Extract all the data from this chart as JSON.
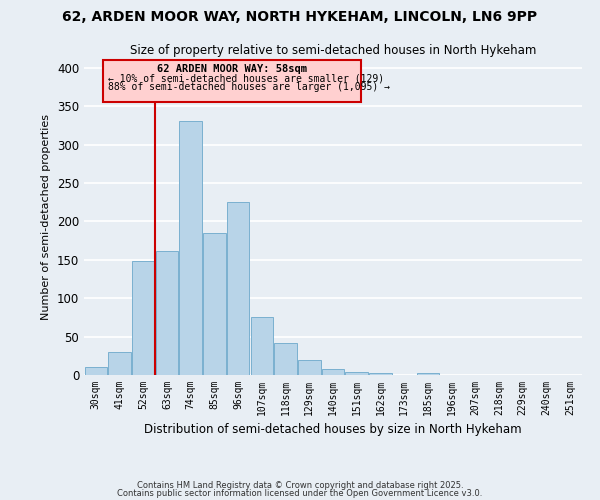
{
  "title1": "62, ARDEN MOOR WAY, NORTH HYKEHAM, LINCOLN, LN6 9PP",
  "title2": "Size of property relative to semi-detached houses in North Hykeham",
  "xlabel": "Distribution of semi-detached houses by size in North Hykeham",
  "ylabel": "Number of semi-detached properties",
  "categories": [
    "30sqm",
    "41sqm",
    "52sqm",
    "63sqm",
    "74sqm",
    "85sqm",
    "96sqm",
    "107sqm",
    "118sqm",
    "129sqm",
    "140sqm",
    "151sqm",
    "162sqm",
    "173sqm",
    "185sqm",
    "196sqm",
    "207sqm",
    "218sqm",
    "229sqm",
    "240sqm",
    "251sqm"
  ],
  "values": [
    10,
    30,
    148,
    162,
    330,
    185,
    225,
    75,
    42,
    20,
    8,
    4,
    2,
    0,
    2,
    0,
    0,
    0,
    0,
    0,
    0
  ],
  "bar_color": "#b8d4e8",
  "bar_edge_color": "#7ab0d0",
  "vline_color": "#cc0000",
  "annotation_title": "62 ARDEN MOOR WAY: 58sqm",
  "annotation_line1": "← 10% of semi-detached houses are smaller (129)",
  "annotation_line2": "88% of semi-detached houses are larger (1,095) →",
  "annotation_box_facecolor": "#ffd0d0",
  "annotation_box_edgecolor": "#cc0000",
  "ylim": [
    0,
    410
  ],
  "yticks": [
    0,
    50,
    100,
    150,
    200,
    250,
    300,
    350,
    400
  ],
  "footer1": "Contains HM Land Registry data © Crown copyright and database right 2025.",
  "footer2": "Contains public sector information licensed under the Open Government Licence v3.0.",
  "background_color": "#e8eef4",
  "grid_color": "#ffffff"
}
